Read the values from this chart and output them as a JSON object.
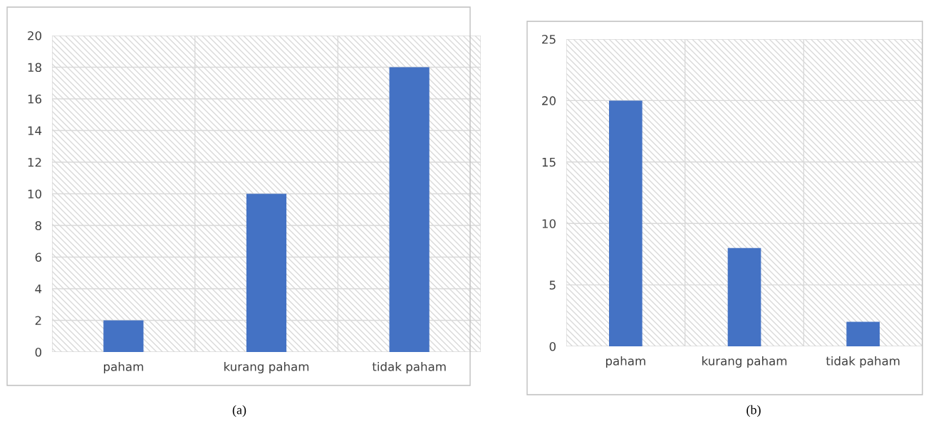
{
  "chart_data": [
    {
      "type": "bar",
      "categories": [
        "paham",
        "kurang paham",
        "tidak paham"
      ],
      "values": [
        2,
        10,
        18
      ],
      "color": "#4472c4",
      "ylim": [
        0,
        20
      ],
      "yticks": [
        0,
        2,
        4,
        6,
        8,
        10,
        12,
        14,
        16,
        18,
        20
      ],
      "grid": true,
      "annotations": [
        "(a)"
      ]
    },
    {
      "type": "bar",
      "categories": [
        "paham",
        "kurang paham",
        "tidak paham"
      ],
      "values": [
        20,
        8,
        2
      ],
      "color": "#4472c4",
      "ylim": [
        0,
        25
      ],
      "yticks": [
        0,
        5,
        10,
        15,
        20,
        25
      ],
      "grid": true,
      "annotations": [
        "(b)"
      ]
    }
  ]
}
